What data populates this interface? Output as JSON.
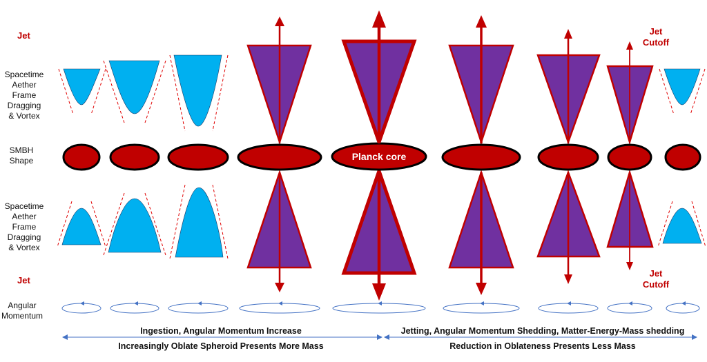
{
  "labels": {
    "jet_top": "Jet",
    "jet_bottom": "Jet",
    "vortex_top": [
      "Spacetime",
      "Aether",
      "Frame",
      "Dragging",
      "& Vortex"
    ],
    "smbh": [
      "SMBH",
      "Shape"
    ],
    "vortex_bottom": [
      "Spacetime",
      "Aether",
      "Frame",
      "Dragging",
      "& Vortex"
    ],
    "angular": [
      "Angular",
      "Momentum"
    ],
    "jet_cutoff_top": [
      "Jet",
      "Cutoff"
    ],
    "jet_cutoff_bottom": [
      "Jet",
      "Cutoff"
    ],
    "planck_core": "Planck core"
  },
  "captions": {
    "left_top": "Ingestion, Angular Momentum Increase",
    "left_bottom": "Increasingly Oblate Spheroid Presents More Mass",
    "right_top": "Jetting, Angular Momentum Shedding, Matter-Energy-Mass shedding",
    "right_bottom": "Reduction in Oblateness Presents Less Mass"
  },
  "colors": {
    "jet_red": "#c00000",
    "smbh_fill": "#c00000",
    "vortex_blue": "#00b0f0",
    "cone_purple": "#7030a0",
    "arrow_blue": "#4472c4"
  }
}
